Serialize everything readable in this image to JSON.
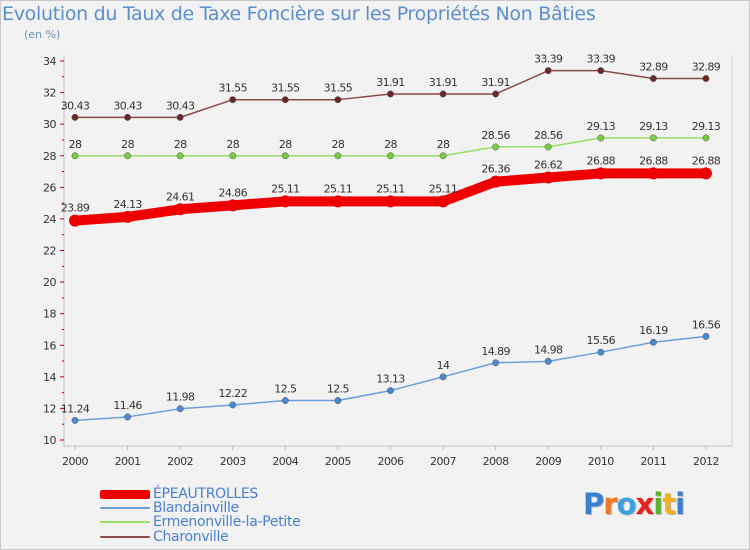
{
  "title": "Evolution du Taux de Taxe Foncière sur les Propriétés Non Bâties",
  "subtitle": "(en %)",
  "logo": {
    "text": "Proxiti",
    "letters": [
      "P",
      "r",
      "o",
      "x",
      "i",
      "t",
      "i"
    ],
    "colors": [
      "#3a7fd0",
      "#f07820",
      "#3aa0e0",
      "#e82020",
      "#60b030",
      "#f0b020",
      "#3a7fd0"
    ]
  },
  "chart_data": {
    "type": "line",
    "title": "Evolution du Taux de Taxe Foncière sur les Propriétés Non Bâties",
    "ylabel": "(en %)",
    "xlabel": "",
    "ylim": [
      10,
      34
    ],
    "y_ticks": [
      "10",
      "12",
      "14",
      "16",
      "18",
      "20",
      "22",
      "24",
      "26",
      "28",
      "30",
      "32",
      "34"
    ],
    "categories": [
      "2000",
      "2001",
      "2002",
      "2003",
      "2004",
      "2005",
      "2006",
      "2007",
      "2008",
      "2009",
      "2010",
      "2011",
      "2012"
    ],
    "grid": false,
    "legend_position": "bottom-left",
    "series": [
      {
        "name": "ÉPEAUTROLLES",
        "color": "#ee0000",
        "thick": true,
        "values": [
          23.89,
          24.13,
          24.61,
          24.86,
          25.11,
          25.11,
          25.11,
          25.11,
          26.36,
          26.62,
          26.88,
          26.88,
          26.88
        ],
        "labels": [
          "23.89",
          "24.13",
          "24.61",
          "24.86",
          "25.11",
          "25.11",
          "25.11",
          "25.11",
          "26.36",
          "26.62",
          "26.88",
          "26.88",
          "26.88"
        ]
      },
      {
        "name": "Blandainville",
        "color": "#6a9fd8",
        "marker": "#4a88d0",
        "thick": false,
        "values": [
          11.24,
          11.46,
          11.98,
          12.22,
          12.5,
          12.5,
          13.13,
          14,
          14.89,
          14.98,
          15.56,
          16.19,
          16.56
        ],
        "labels": [
          "11.24",
          "11.46",
          "11.98",
          "12.22",
          "12.5",
          "12.5",
          "13.13",
          "14",
          "14.89",
          "14.98",
          "15.56",
          "16.19",
          "16.56"
        ]
      },
      {
        "name": "Ermenonville-la-Petite",
        "color": "#99dd66",
        "marker": "#77cc44",
        "thick": false,
        "values": [
          28,
          28,
          28,
          28,
          28,
          28,
          28,
          28,
          28.56,
          28.56,
          29.13,
          29.13,
          29.13
        ],
        "labels": [
          "28",
          "28",
          "28",
          "28",
          "28",
          "28",
          "28",
          "28",
          "28.56",
          "28.56",
          "29.13",
          "29.13",
          "29.13"
        ]
      },
      {
        "name": "Charonville",
        "color": "#8a4a4a",
        "marker": "#6a2a2a",
        "thick": false,
        "values": [
          30.43,
          30.43,
          30.43,
          31.55,
          31.55,
          31.55,
          31.91,
          31.91,
          31.91,
          33.39,
          33.39,
          32.89,
          32.89
        ],
        "labels": [
          "30.43",
          "30.43",
          "30.43",
          "31.55",
          "31.55",
          "31.55",
          "31.91",
          "31.91",
          "31.91",
          "33.39",
          "33.39",
          "32.89",
          "32.89"
        ]
      }
    ]
  }
}
